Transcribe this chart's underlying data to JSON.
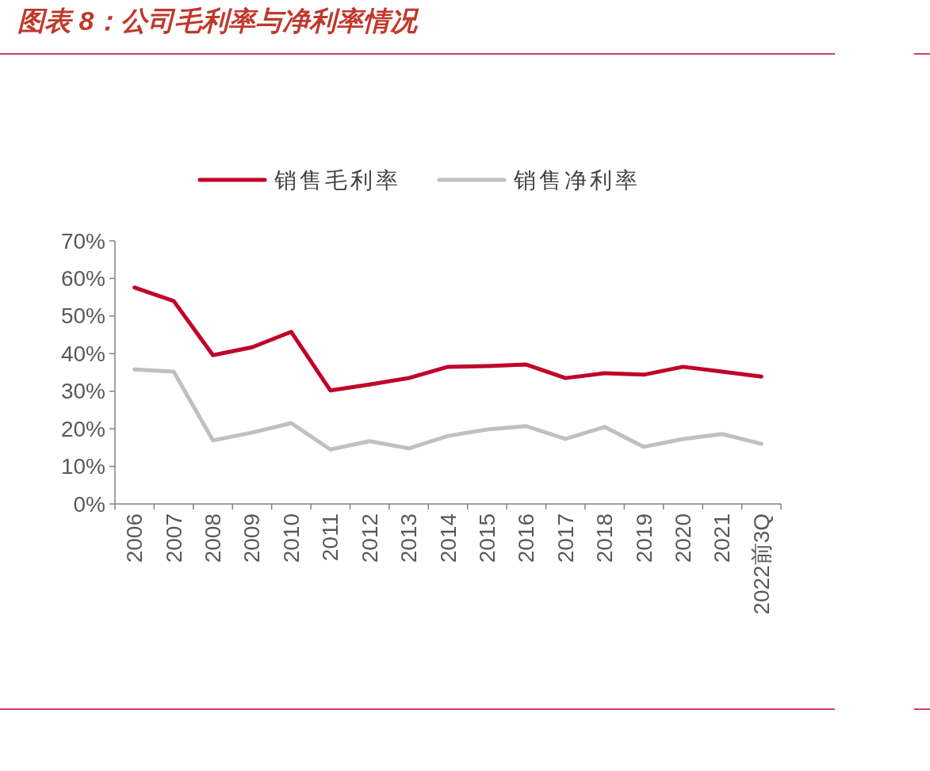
{
  "chart_data": {
    "type": "line",
    "title": "图表 8：公司毛利率与净利率情况",
    "categories": [
      "2006",
      "2007",
      "2008",
      "2009",
      "2010",
      "2011",
      "2012",
      "2013",
      "2014",
      "2015",
      "2016",
      "2017",
      "2018",
      "2019",
      "2020",
      "2021",
      "2022前3Q"
    ],
    "series": [
      {
        "name": "销售毛利率",
        "color": "#c0002a",
        "values": [
          57.6,
          54.0,
          39.6,
          41.7,
          45.8,
          30.2,
          31.8,
          33.5,
          36.5,
          36.7,
          37.1,
          33.5,
          34.8,
          34.4,
          36.5,
          35.2,
          33.9
        ]
      },
      {
        "name": "销售净利率",
        "color": "#c0c0c0",
        "values": [
          35.8,
          35.2,
          16.9,
          19.0,
          21.5,
          14.5,
          16.7,
          14.8,
          18.1,
          19.8,
          20.7,
          17.3,
          20.5,
          15.2,
          17.3,
          18.6,
          16.0
        ]
      }
    ],
    "ylim": [
      0,
      70
    ],
    "yticks": [
      {
        "value": 0,
        "label": "0%"
      },
      {
        "value": 10,
        "label": "10%"
      },
      {
        "value": 20,
        "label": "20%"
      },
      {
        "value": 30,
        "label": "30%"
      },
      {
        "value": 40,
        "label": "40%"
      },
      {
        "value": 50,
        "label": "50%"
      },
      {
        "value": 60,
        "label": "60%"
      },
      {
        "value": 70,
        "label": "70%"
      }
    ],
    "legend": "top",
    "grid": false
  }
}
